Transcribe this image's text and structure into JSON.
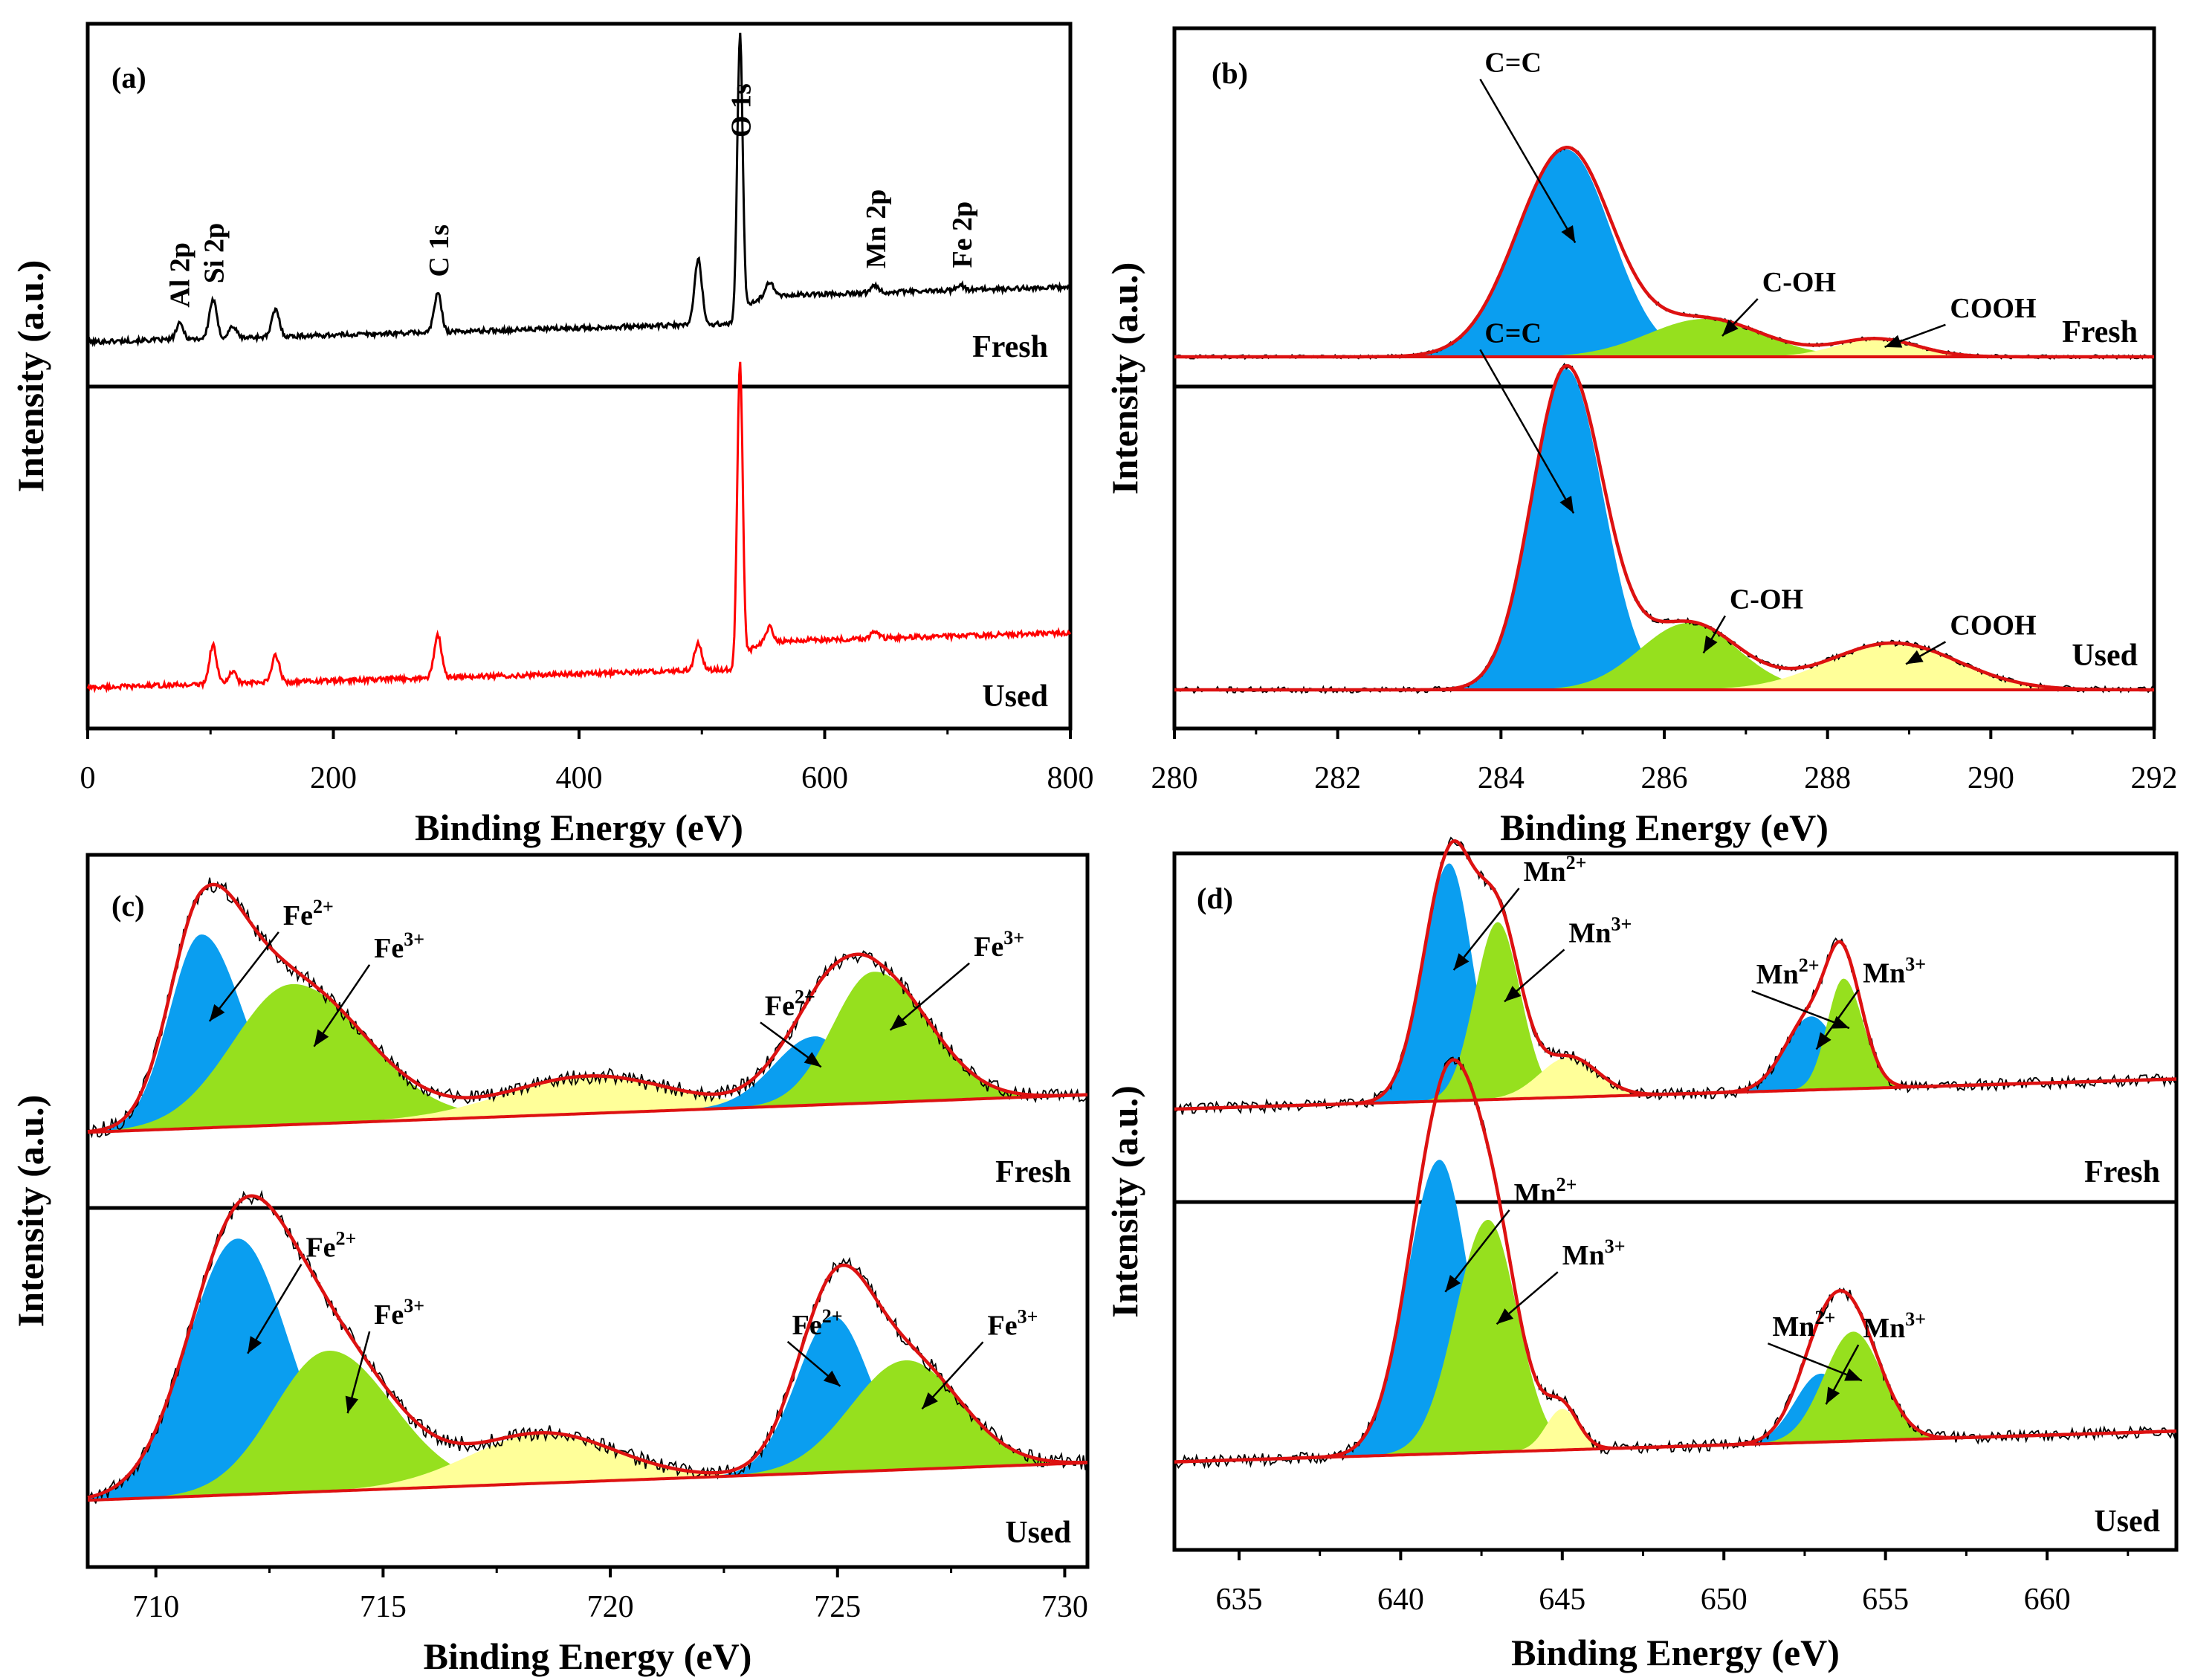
{
  "figure": {
    "panels": [
      "(a)",
      "(b)",
      "(c)",
      "(d)"
    ],
    "colors": {
      "fresh_line": "#000000",
      "used_line": "#ff0000",
      "envelope": "#dd1111",
      "blue": "#0a9ef0",
      "green": "#96e01e",
      "yellow": "#ffff99",
      "bright_green": "#22cc22"
    }
  },
  "chart_data": [
    {
      "type": "line",
      "panel": "(a)",
      "title": "(a)",
      "xlabel": "Binding Energy (eV)",
      "ylabel": "Intensity (a.u.)",
      "xlim": [
        0,
        800
      ],
      "xticks": [
        0,
        200,
        400,
        600,
        800
      ],
      "tick_labels": [
        "0",
        "200",
        "400",
        "600",
        "800"
      ],
      "series": [
        {
          "name": "Fresh",
          "label": "Fresh",
          "peaks": [
            {
              "x": 75,
              "h": 0.04
            },
            {
              "x": 102,
              "h": 0.1
            },
            {
              "x": 118,
              "h": 0.03
            },
            {
              "x": 153,
              "h": 0.07
            },
            {
              "x": 285,
              "h": 0.1
            },
            {
              "x": 497,
              "h": 0.17
            },
            {
              "x": 531,
              "h": 0.74
            },
            {
              "x": 555,
              "h": 0.04
            },
            {
              "x": 641,
              "h": 0.02
            },
            {
              "x": 710,
              "h": 0.015
            }
          ],
          "annotations": [
            {
              "text": "Al 2p",
              "x": 74
            },
            {
              "text": "Si 2p",
              "x": 102
            },
            {
              "text": "C 1s",
              "x": 285
            },
            {
              "text": "O 1s",
              "x": 531
            },
            {
              "text": "Mn 2p",
              "x": 641
            },
            {
              "text": "Fe 2p",
              "x": 711
            }
          ]
        },
        {
          "name": "Used",
          "label": "Used",
          "peaks": [
            {
              "x": 102,
              "h": 0.1
            },
            {
              "x": 118,
              "h": 0.03
            },
            {
              "x": 153,
              "h": 0.07
            },
            {
              "x": 285,
              "h": 0.11
            },
            {
              "x": 497,
              "h": 0.07
            },
            {
              "x": 531,
              "h": 0.79
            },
            {
              "x": 555,
              "h": 0.04
            },
            {
              "x": 641,
              "h": 0.02
            }
          ],
          "annotations": []
        }
      ]
    },
    {
      "type": "line",
      "panel": "(b)",
      "title": "(b)",
      "xlabel": "Binding Energy (eV)",
      "ylabel": "Intensity (a.u.)",
      "xlim": [
        280,
        292
      ],
      "xticks": [
        280,
        282,
        284,
        286,
        288,
        290,
        292
      ],
      "tick_labels": [
        "280",
        "282",
        "284",
        "286",
        "288",
        "290",
        "292"
      ],
      "series": [
        {
          "name": "Fresh",
          "label": "Fresh",
          "components": [
            {
              "name": "C=C",
              "center": 284.8,
              "height": 0.93,
              "sigma_left": 0.6,
              "sigma_right": 0.55,
              "color": "blue"
            },
            {
              "name": "C-OH",
              "center": 286.5,
              "height": 0.17,
              "sigma_left": 0.7,
              "sigma_right": 0.7,
              "color": "green"
            },
            {
              "name": "COOH",
              "center": 288.6,
              "height": 0.08,
              "sigma_left": 0.5,
              "sigma_right": 0.5,
              "color": "yellow"
            }
          ],
          "labels": [
            {
              "text": "C=C",
              "x": 283.8
            },
            {
              "text": "C-OH",
              "x": 287.2
            },
            {
              "text": "COOH",
              "x": 289.5
            }
          ]
        },
        {
          "name": "Used",
          "label": "Used",
          "components": [
            {
              "name": "C=C",
              "center": 284.8,
              "height": 0.96,
              "sigma_left": 0.42,
              "sigma_right": 0.45,
              "color": "blue"
            },
            {
              "name": "C-OH",
              "center": 286.3,
              "height": 0.2,
              "sigma_left": 0.6,
              "sigma_right": 0.6,
              "color": "green"
            },
            {
              "name": "COOH",
              "center": 288.8,
              "height": 0.14,
              "sigma_left": 0.8,
              "sigma_right": 0.8,
              "color": "yellow"
            }
          ],
          "labels": [
            {
              "text": "C=C",
              "x": 283.8
            },
            {
              "text": "C-OH",
              "x": 286.8
            },
            {
              "text": "COOH",
              "x": 289.5
            }
          ]
        }
      ]
    },
    {
      "type": "line",
      "panel": "(c)",
      "title": "(c)",
      "xlabel": "Binding Energy (eV)",
      "ylabel": "Intensity (a.u.)",
      "xlim": [
        708.5,
        730.5
      ],
      "xticks": [
        710,
        715,
        720,
        725,
        730
      ],
      "tick_labels": [
        "710",
        "715",
        "720",
        "725",
        "730"
      ],
      "series": [
        {
          "name": "Fresh",
          "label": "Fresh",
          "components": [
            {
              "name": "Fe2+",
              "center": 711.0,
              "height": 0.62,
              "sigma_left": 0.7,
              "sigma_right": 0.9,
              "color": "blue"
            },
            {
              "name": "Fe3+",
              "center": 713.0,
              "height": 0.45,
              "sigma_left": 1.3,
              "sigma_right": 1.6,
              "color": "green"
            },
            {
              "name": "satellite",
              "center": 719.5,
              "height": 0.12,
              "sigma_left": 1.8,
              "sigma_right": 1.8,
              "color": "yellow"
            },
            {
              "name": "Fe2+",
              "center": 724.5,
              "height": 0.22,
              "sigma_left": 0.9,
              "sigma_right": 0.7,
              "color": "blue"
            },
            {
              "name": "Fe3+",
              "center": 725.8,
              "height": 0.42,
              "sigma_left": 0.9,
              "sigma_right": 1.2,
              "color": "green"
            }
          ],
          "labels": [
            {
              "text": "Fe",
              "sup": "2+",
              "x": 712.8
            },
            {
              "text": "Fe",
              "sup": "3+",
              "x": 714.8
            },
            {
              "text": "Fe",
              "sup": "2+",
              "x": 723.4
            },
            {
              "text": "Fe",
              "sup": "3+",
              "x": 728.0
            }
          ]
        },
        {
          "name": "Used",
          "label": "Used",
          "components": [
            {
              "name": "Fe2+",
              "center": 711.8,
              "height": 0.82,
              "sigma_left": 1.1,
              "sigma_right": 1.1,
              "color": "blue"
            },
            {
              "name": "Fe3+",
              "center": 713.8,
              "height": 0.45,
              "sigma_left": 1.2,
              "sigma_right": 1.4,
              "color": "green"
            },
            {
              "name": "satellite",
              "center": 718.5,
              "height": 0.16,
              "sigma_left": 1.6,
              "sigma_right": 1.6,
              "color": "yellow"
            },
            {
              "name": "Fe2+",
              "center": 724.9,
              "height": 0.5,
              "sigma_left": 0.8,
              "sigma_right": 0.8,
              "color": "blue"
            },
            {
              "name": "Fe3+",
              "center": 726.5,
              "height": 0.35,
              "sigma_left": 1.2,
              "sigma_right": 1.2,
              "color": "green"
            }
          ],
          "labels": [
            {
              "text": "Fe",
              "sup": "2+",
              "x": 713.3
            },
            {
              "text": "Fe",
              "sup": "3+",
              "x": 714.8
            },
            {
              "text": "Fe",
              "sup": "2+",
              "x": 724.0
            },
            {
              "text": "Fe",
              "sup": "3+",
              "x": 728.3
            }
          ]
        }
      ]
    },
    {
      "type": "line",
      "panel": "(d)",
      "title": "(d)",
      "xlabel": "Binding Energy (eV)",
      "ylabel": "Intensity (a.u.)",
      "xlim": [
        633,
        664
      ],
      "xticks": [
        635,
        640,
        645,
        650,
        655,
        660
      ],
      "tick_labels": [
        "635",
        "640",
        "645",
        "650",
        "655",
        "660"
      ],
      "series": [
        {
          "name": "Fresh",
          "label": "Fresh",
          "components": [
            {
              "name": "Mn2+",
              "center": 641.5,
              "height": 0.71,
              "sigma_left": 0.8,
              "sigma_right": 0.7,
              "color": "blue"
            },
            {
              "name": "Mn3+",
              "center": 643.0,
              "height": 0.53,
              "sigma_left": 0.7,
              "sigma_right": 0.7,
              "color": "green"
            },
            {
              "name": "satellite",
              "center": 645.2,
              "height": 0.12,
              "sigma_left": 0.9,
              "sigma_right": 0.9,
              "color": "yellow"
            },
            {
              "name": "Mn2+",
              "center": 652.7,
              "height": 0.22,
              "sigma_left": 0.8,
              "sigma_right": 0.8,
              "color": "blue"
            },
            {
              "name": "Mn3+",
              "center": 653.7,
              "height": 0.33,
              "sigma_left": 0.5,
              "sigma_right": 0.6,
              "color": "green"
            }
          ],
          "labels": [
            {
              "text": "Mn",
              "sup": "2+",
              "x": 643.8
            },
            {
              "text": "Mn",
              "sup": "3+",
              "x": 645.2
            },
            {
              "text": "Mn",
              "sup": "3+",
              "x": 654.3
            },
            {
              "text": "Mn",
              "sup": "2+",
              "x": 651.0
            }
          ]
        },
        {
          "name": "Used",
          "label": "Used",
          "components": [
            {
              "name": "Mn2+",
              "center": 641.2,
              "height": 0.86,
              "sigma_left": 1.0,
              "sigma_right": 0.9,
              "color": "blue"
            },
            {
              "name": "Mn3+",
              "center": 642.7,
              "height": 0.68,
              "sigma_left": 1.0,
              "sigma_right": 0.9,
              "color": "green"
            },
            {
              "name": "satellite",
              "center": 645.0,
              "height": 0.12,
              "sigma_left": 0.5,
              "sigma_right": 0.5,
              "color": "yellow"
            },
            {
              "name": "Mn2+",
              "center": 653.0,
              "height": 0.2,
              "sigma_left": 0.8,
              "sigma_right": 0.8,
              "color": "blue"
            },
            {
              "name": "Mn3+",
              "center": 654.0,
              "height": 0.32,
              "sigma_left": 0.9,
              "sigma_right": 0.9,
              "color": "green"
            }
          ],
          "labels": [
            {
              "text": "Mn",
              "sup": "2+",
              "x": 643.5
            },
            {
              "text": "Mn",
              "sup": "3+",
              "x": 645.0
            },
            {
              "text": "Mn",
              "sup": "3+",
              "x": 654.3
            },
            {
              "text": "Mn",
              "sup": "2+",
              "x": 651.5
            }
          ]
        }
      ]
    }
  ]
}
